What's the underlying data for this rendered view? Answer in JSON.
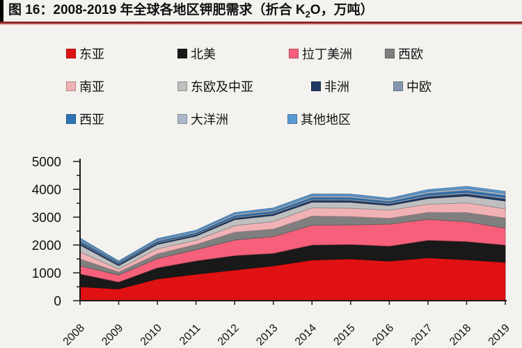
{
  "title": {
    "prefix": "图 16：2008-2019 年全球各地区钾肥需求（折合 K",
    "sub": "2",
    "suffix": "O，万吨）"
  },
  "colors": {
    "background": "#f4f2ef",
    "title_text": "#111111",
    "divider_dark_red": "#8e2323",
    "divider_light_red": "#e2b0b0",
    "axis": "#1a1a1a"
  },
  "chart_data": {
    "type": "area",
    "stacked": true,
    "title": "2008-2019 年全球各地区钾肥需求（折合 K2O，万吨）",
    "xlabel": "",
    "ylabel": "",
    "categories": [
      2008,
      2009,
      2010,
      2011,
      2012,
      2013,
      2014,
      2015,
      2016,
      2017,
      2018,
      2019
    ],
    "ylim": [
      0,
      5000
    ],
    "yticks": [
      0,
      1000,
      2000,
      3000,
      4000,
      5000
    ],
    "ytick_minor_interval": 500,
    "grid": false,
    "legend_position": "top",
    "series": [
      {
        "name": "东亚",
        "key": "east-asia",
        "color": "#e01112",
        "values": [
          500,
          420,
          780,
          950,
          1100,
          1250,
          1460,
          1500,
          1420,
          1540,
          1470,
          1375
        ]
      },
      {
        "name": "北美",
        "key": "north-america",
        "color": "#191919",
        "values": [
          460,
          250,
          400,
          480,
          520,
          450,
          540,
          520,
          540,
          630,
          655,
          625
        ]
      },
      {
        "name": "拉丁美洲",
        "key": "latin-america",
        "color": "#f7607a",
        "values": [
          290,
          250,
          330,
          400,
          560,
          600,
          710,
          700,
          790,
          750,
          710,
          600
        ]
      },
      {
        "name": "西欧",
        "key": "western-europe",
        "color": "#7f7f7f",
        "values": [
          250,
          110,
          170,
          190,
          280,
          270,
          330,
          300,
          210,
          250,
          330,
          370
        ]
      },
      {
        "name": "南亚",
        "key": "south-asia",
        "color": "#f1b2b6",
        "values": [
          250,
          100,
          180,
          150,
          235,
          270,
          295,
          300,
          290,
          290,
          345,
          330
        ]
      },
      {
        "name": "东欧及中亚",
        "key": "eastern-europe-central-asia",
        "color": "#bfbfbf",
        "values": [
          250,
          125,
          160,
          150,
          215,
          220,
          205,
          215,
          170,
          210,
          250,
          280
        ]
      },
      {
        "name": "非洲",
        "key": "africa",
        "color": "#1f3864",
        "values": [
          60,
          40,
          45,
          45,
          55,
          60,
          65,
          65,
          55,
          70,
          75,
          75
        ]
      },
      {
        "name": "中欧",
        "key": "central-europe",
        "color": "#8496b0",
        "values": [
          45,
          30,
          35,
          35,
          45,
          45,
          50,
          50,
          45,
          55,
          60,
          60
        ]
      },
      {
        "name": "西亚",
        "key": "west-asia",
        "color": "#2e74b5",
        "values": [
          50,
          35,
          40,
          40,
          50,
          55,
          60,
          60,
          50,
          65,
          70,
          70
        ]
      },
      {
        "name": "大洋洲",
        "key": "oceania",
        "color": "#adb9ca",
        "values": [
          45,
          30,
          40,
          40,
          50,
          50,
          55,
          55,
          50,
          60,
          65,
          65
        ]
      },
      {
        "name": "其他地区",
        "key": "other-regions",
        "color": "#5b9bd5",
        "values": [
          50,
          40,
          50,
          50,
          55,
          60,
          65,
          65,
          60,
          70,
          75,
          75
        ]
      }
    ]
  }
}
